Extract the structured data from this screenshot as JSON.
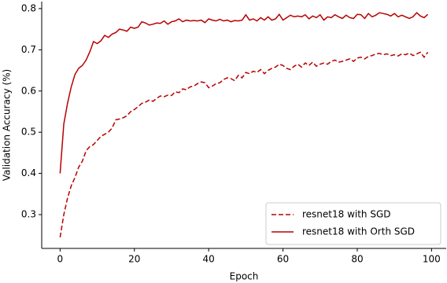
{
  "chart_data": {
    "type": "line",
    "xlabel": "Epoch",
    "ylabel": "Validation Accuracy (%)",
    "x": [
      0,
      1,
      2,
      3,
      4,
      5,
      6,
      7,
      8,
      9,
      10,
      11,
      12,
      13,
      14,
      15,
      16,
      17,
      18,
      19,
      20,
      21,
      22,
      23,
      24,
      25,
      26,
      27,
      28,
      29,
      30,
      31,
      32,
      33,
      34,
      35,
      36,
      37,
      38,
      39,
      40,
      41,
      42,
      43,
      44,
      45,
      46,
      47,
      48,
      49,
      50,
      51,
      52,
      53,
      54,
      55,
      56,
      57,
      58,
      59,
      60,
      61,
      62,
      63,
      64,
      65,
      66,
      67,
      68,
      69,
      70,
      71,
      72,
      73,
      74,
      75,
      76,
      77,
      78,
      79,
      80,
      81,
      82,
      83,
      84,
      85,
      86,
      87,
      88,
      89,
      90,
      91,
      92,
      93,
      94,
      95,
      96,
      97,
      98,
      99
    ],
    "series": [
      {
        "name": "resnet18 with SGD",
        "color": "#b80000",
        "linestyle": "dashed",
        "values": [
          0.245,
          0.3,
          0.34,
          0.37,
          0.39,
          0.415,
          0.43,
          0.455,
          0.465,
          0.47,
          0.48,
          0.49,
          0.495,
          0.5,
          0.51,
          0.53,
          0.532,
          0.535,
          0.54,
          0.55,
          0.555,
          0.562,
          0.57,
          0.573,
          0.578,
          0.575,
          0.582,
          0.588,
          0.586,
          0.59,
          0.589,
          0.598,
          0.596,
          0.605,
          0.603,
          0.61,
          0.612,
          0.618,
          0.622,
          0.62,
          0.608,
          0.612,
          0.618,
          0.62,
          0.628,
          0.632,
          0.63,
          0.625,
          0.638,
          0.632,
          0.645,
          0.642,
          0.648,
          0.645,
          0.652,
          0.642,
          0.65,
          0.655,
          0.658,
          0.665,
          0.662,
          0.655,
          0.652,
          0.66,
          0.665,
          0.658,
          0.668,
          0.662,
          0.67,
          0.66,
          0.665,
          0.668,
          0.665,
          0.672,
          0.675,
          0.67,
          0.672,
          0.675,
          0.678,
          0.672,
          0.68,
          0.682,
          0.678,
          0.684,
          0.686,
          0.69,
          0.691,
          0.688,
          0.69,
          0.686,
          0.688,
          0.685,
          0.69,
          0.688,
          0.692,
          0.686,
          0.69,
          0.694,
          0.682,
          0.694
        ]
      },
      {
        "name": "resnet18 with Orth SGD",
        "color": "#b80000",
        "linestyle": "solid",
        "values": [
          0.4,
          0.52,
          0.57,
          0.61,
          0.64,
          0.655,
          0.662,
          0.675,
          0.695,
          0.72,
          0.715,
          0.722,
          0.735,
          0.73,
          0.738,
          0.742,
          0.75,
          0.748,
          0.745,
          0.755,
          0.752,
          0.755,
          0.768,
          0.765,
          0.76,
          0.762,
          0.765,
          0.764,
          0.77,
          0.762,
          0.768,
          0.77,
          0.775,
          0.768,
          0.772,
          0.77,
          0.771,
          0.77,
          0.772,
          0.766,
          0.775,
          0.772,
          0.77,
          0.774,
          0.77,
          0.772,
          0.768,
          0.771,
          0.77,
          0.772,
          0.785,
          0.772,
          0.775,
          0.77,
          0.778,
          0.772,
          0.78,
          0.772,
          0.775,
          0.786,
          0.772,
          0.778,
          0.784,
          0.78,
          0.782,
          0.78,
          0.785,
          0.775,
          0.782,
          0.778,
          0.785,
          0.772,
          0.78,
          0.778,
          0.785,
          0.78,
          0.776,
          0.784,
          0.778,
          0.776,
          0.786,
          0.785,
          0.776,
          0.788,
          0.78,
          0.784,
          0.79,
          0.788,
          0.786,
          0.782,
          0.788,
          0.78,
          0.784,
          0.78,
          0.776,
          0.78,
          0.79,
          0.782,
          0.778,
          0.786
        ]
      }
    ],
    "xlim": [
      -4.95,
      103.95
    ],
    "xticks": [
      0,
      20,
      40,
      60,
      80,
      100
    ],
    "ylim": [
      0.218,
      0.817
    ],
    "yticks": [
      0.3,
      0.4,
      0.5,
      0.6,
      0.7,
      0.8
    ],
    "legend": "lower right"
  }
}
